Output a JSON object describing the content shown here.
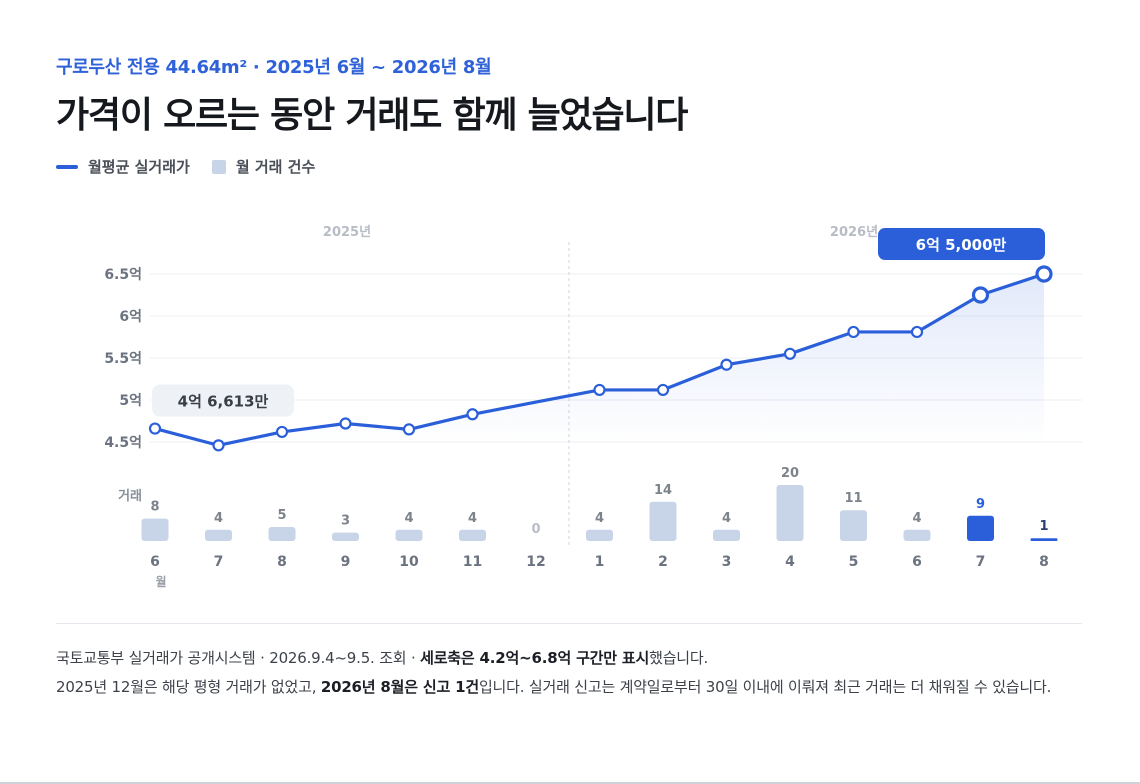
{
  "header": {
    "subtitle": "구로두산 전용 44.64m² · 2025년 6월 ~ 2026년 8월",
    "title": "가격이 오르는 동안 거래도 함께 늘었습니다"
  },
  "legend": {
    "line_label": "월평균 실거래가",
    "bar_label": "월 거래 건수"
  },
  "chart_data": {
    "type": "line+bar",
    "year_labels": [
      "2025년",
      "2026년"
    ],
    "x_categories": [
      "6",
      "7",
      "8",
      "9",
      "10",
      "11",
      "12",
      "1",
      "2",
      "3",
      "4",
      "5",
      "6",
      "7",
      "8"
    ],
    "x_unit_label": "월",
    "price_series": {
      "name": "월평균 실거래가",
      "unit": "억",
      "values": [
        4.66,
        4.46,
        4.62,
        4.72,
        4.65,
        4.83,
        null,
        5.12,
        5.12,
        5.42,
        5.55,
        5.81,
        5.81,
        6.25,
        6.5
      ]
    },
    "price_gap_dashed_from_to": [
      5,
      7
    ],
    "y_ticks": [
      {
        "value": 6.5,
        "label": "6.5억"
      },
      {
        "value": 6,
        "label": "6억"
      },
      {
        "value": 5.5,
        "label": "5.5억"
      },
      {
        "value": 5,
        "label": "5억"
      },
      {
        "value": 4.5,
        "label": "4.5억"
      }
    ],
    "ylim": [
      4.2,
      6.8
    ],
    "count_series": {
      "name": "월 거래 건수",
      "axis_label": "거래",
      "values": [
        8,
        4,
        5,
        3,
        4,
        4,
        0,
        4,
        14,
        4,
        20,
        11,
        4,
        9,
        1
      ],
      "highlight_indices": [
        13,
        14
      ]
    },
    "callouts": {
      "start": {
        "index": 0,
        "label": "4억 6,613만"
      },
      "end": {
        "index": 14,
        "label": "6억 5,000만"
      }
    },
    "colors": {
      "line": "#2a5fd9",
      "bar": "#c8d4e8",
      "bar_highlight": "#2a5fd9",
      "callout_end_bg": "#2a5fd9",
      "callout_start_bg": "#eef1f5"
    }
  },
  "footer": {
    "line1_a": "국토교통부 실거래가 공개시스템 · 2026.9.4~9.5. 조회 · ",
    "line1_b": "세로축은 4.2억~6.8억 구간만 표시",
    "line1_c": "했습니다.",
    "line2_a": "2025년 12월은 해당 평형 거래가 없었고, ",
    "line2_b": "2026년 8월은 신고 1건",
    "line2_c": "입니다. 실거래 신고는 계약일로부터 30일 이내에 이뤄져 최근 거래는 더 채워질 수 있습니다."
  }
}
